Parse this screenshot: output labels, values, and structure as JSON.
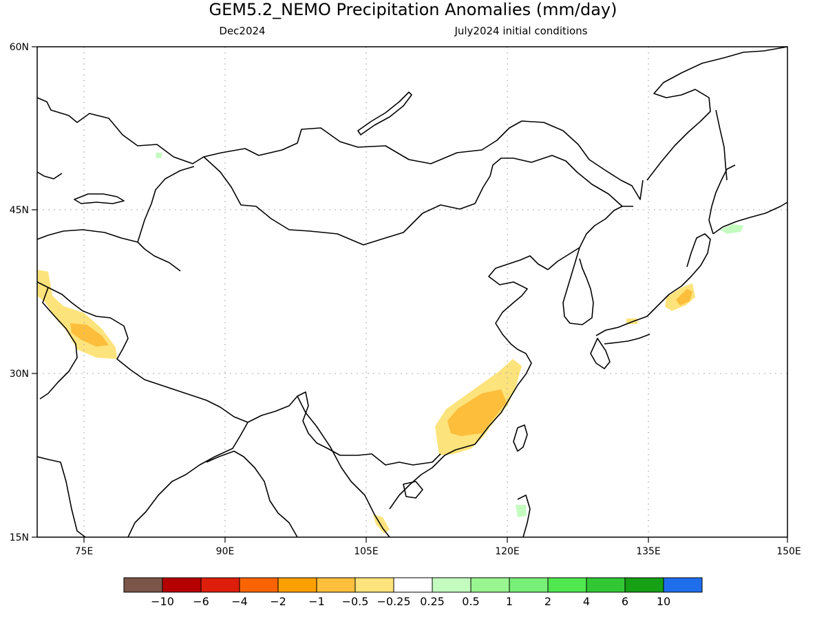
{
  "title": "GEM5.2_NEMO Precipitation Anomalies (mm/day)",
  "subtitle_left": "Dec2024",
  "subtitle_right": "July2024 initial conditions",
  "lat_labels": [
    "60N",
    "45N",
    "30N",
    "15N"
  ],
  "lon_labels": [
    "75E",
    "90E",
    "105E",
    "120E",
    "135E",
    "150E"
  ],
  "legend": {
    "colors": [
      "#7a5548",
      "#b50000",
      "#dc1e0a",
      "#fa6400",
      "#fca000",
      "#fdbe3c",
      "#fde37b",
      "#ffffff",
      "#c4fcc0",
      "#98f590",
      "#78f077",
      "#4fe84e",
      "#32c835",
      "#15a015",
      "#1e6eeb"
    ],
    "labels": [
      "−10",
      "−6",
      "−4",
      "−2",
      "−1",
      "−0.5",
      "−0.25",
      "0.25",
      "0.5",
      "1",
      "2",
      "4",
      "6",
      "10"
    ]
  },
  "colors": {
    "coast": "#000000",
    "grid": "#aaaaaa",
    "dry_light": "#fde37b",
    "dry_medium": "#fdbe3c",
    "wet_light": "#c4fcc0"
  }
}
